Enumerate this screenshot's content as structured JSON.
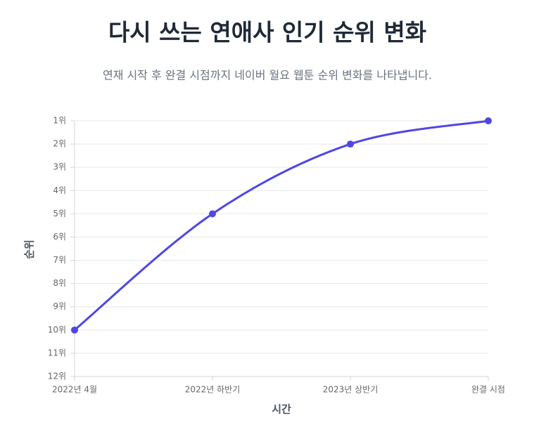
{
  "chart_data": {
    "type": "line",
    "title": "다시 쓰는 연애사 인기 순위 변화",
    "subtitle": "연재 시작 후 완결 시점까지 네이버 월요 웹툰 순위 변화를 나타냅니다.",
    "x_label": "시간",
    "y_label": "순위",
    "categories": [
      "2022년 4월",
      "2022년 하반기",
      "2023년 상반기",
      "완결 시점"
    ],
    "series": [
      {
        "color": "#4f46e5",
        "values": [
          10,
          5,
          2,
          1
        ]
      }
    ],
    "ylim": [
      1,
      12
    ],
    "y_inverted": true,
    "yticks": [
      {
        "value": 1,
        "label": "1위"
      },
      {
        "value": 2,
        "label": "2위"
      },
      {
        "value": 3,
        "label": "3위"
      },
      {
        "value": 4,
        "label": "4위"
      },
      {
        "value": 5,
        "label": "5위"
      },
      {
        "value": 6,
        "label": "6위"
      },
      {
        "value": 7,
        "label": "7위"
      },
      {
        "value": 8,
        "label": "8위"
      },
      {
        "value": 9,
        "label": "9위"
      },
      {
        "value": 10,
        "label": "10위"
      },
      {
        "value": 11,
        "label": "11위"
      },
      {
        "value": 12,
        "label": "12위"
      }
    ],
    "grid": true
  }
}
